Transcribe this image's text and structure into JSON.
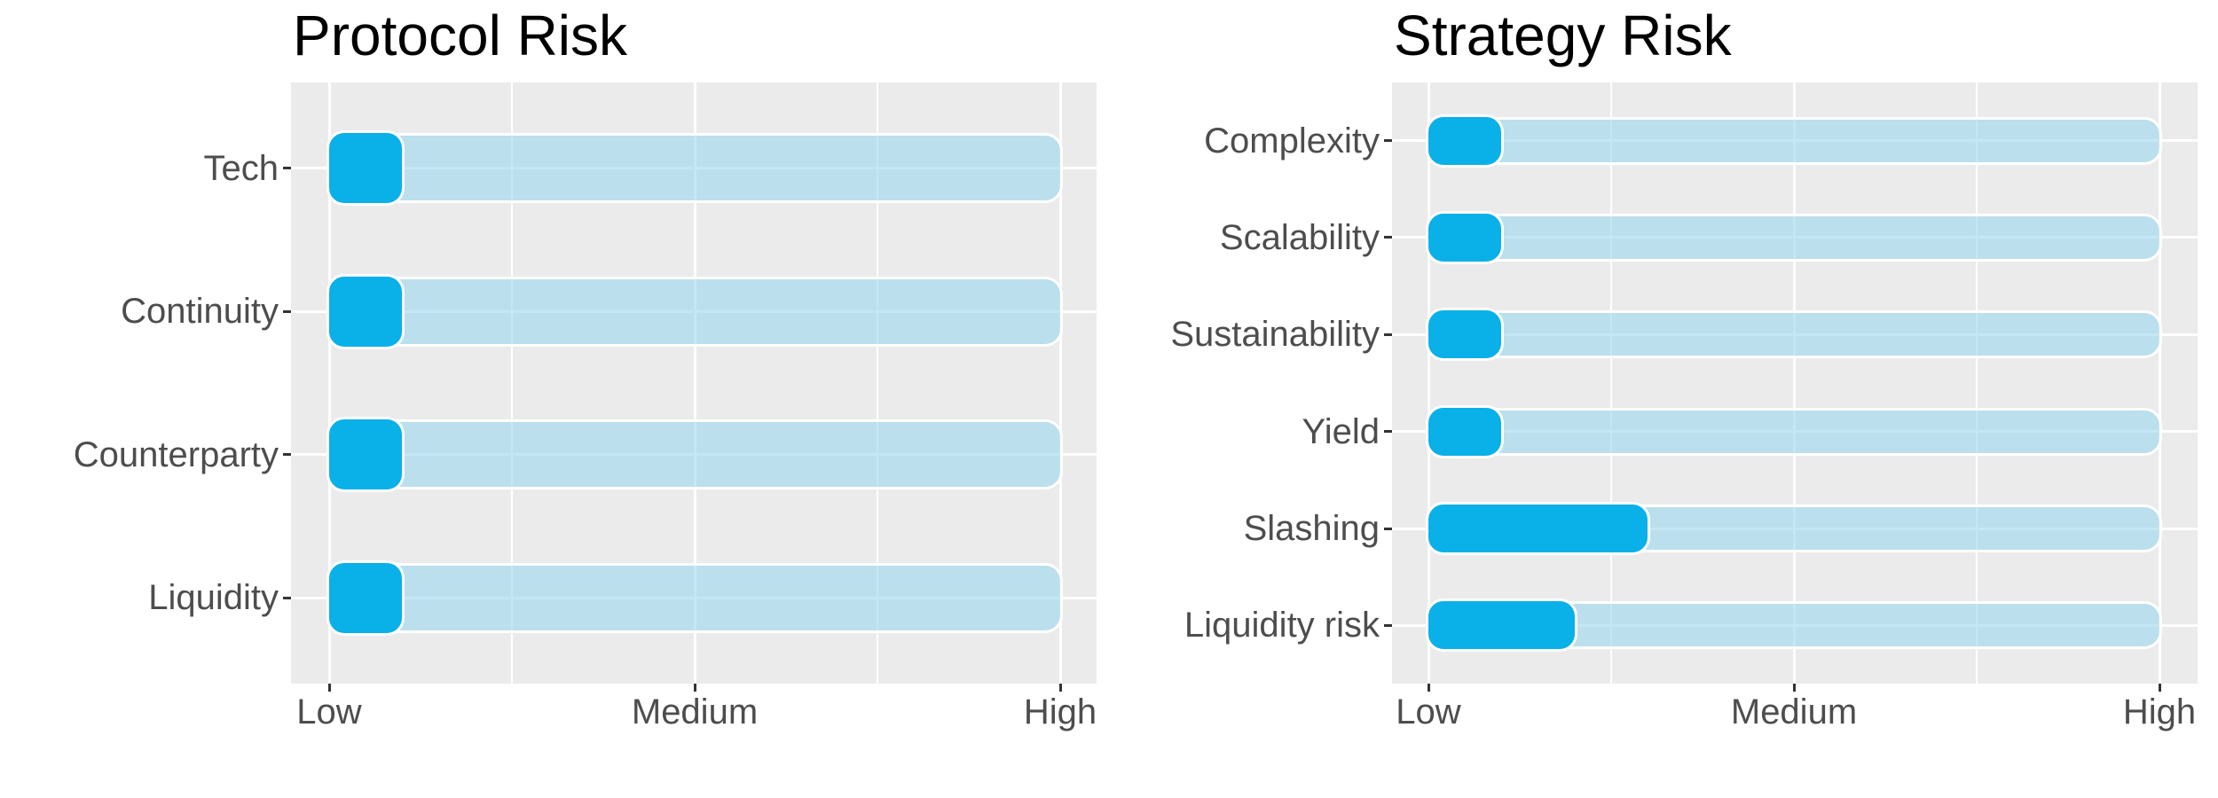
{
  "chart_data": [
    {
      "type": "bar",
      "orientation": "horizontal",
      "title": "Protocol Risk",
      "categories": [
        "Tech",
        "Continuity",
        "Counterparty",
        "Liquidity"
      ],
      "values": [
        1.2,
        1.2,
        1.2,
        1.2
      ],
      "track_max": 3,
      "xlim": [
        1,
        3
      ],
      "x_ticks": [
        1,
        2,
        3
      ],
      "x_tick_labels": [
        "Low",
        "Medium",
        "High"
      ],
      "ylabel": "",
      "xlabel": "",
      "legend": false,
      "grid": "white gridlines on grey panel, vertical major at ticks and minor at midpoints, horizontal major at each category",
      "colors": {
        "bar": "#0ab0e8",
        "track": "rgba(158,217,237,0.62)",
        "panel": "#ebebeb",
        "grid": "#ffffff",
        "title": "#000000",
        "label": "#4d4d4d",
        "tick": "#333333"
      }
    },
    {
      "type": "bar",
      "orientation": "horizontal",
      "title": "Strategy Risk",
      "categories": [
        "Complexity",
        "Scalability",
        "Sustainability",
        "Yield",
        "Slashing",
        "Liquidity risk"
      ],
      "values": [
        1.2,
        1.2,
        1.2,
        1.2,
        1.6,
        1.4
      ],
      "track_max": 3,
      "xlim": [
        1,
        3
      ],
      "x_ticks": [
        1,
        2,
        3
      ],
      "x_tick_labels": [
        "Low",
        "Medium",
        "High"
      ],
      "ylabel": "",
      "xlabel": "",
      "legend": false,
      "grid": "white gridlines on grey panel, vertical major at ticks and minor at midpoints, horizontal major at each category",
      "colors": {
        "bar": "#0ab0e8",
        "track": "rgba(158,217,237,0.62)",
        "panel": "#ebebeb",
        "grid": "#ffffff",
        "title": "#000000",
        "label": "#4d4d4d",
        "tick": "#333333"
      }
    }
  ]
}
